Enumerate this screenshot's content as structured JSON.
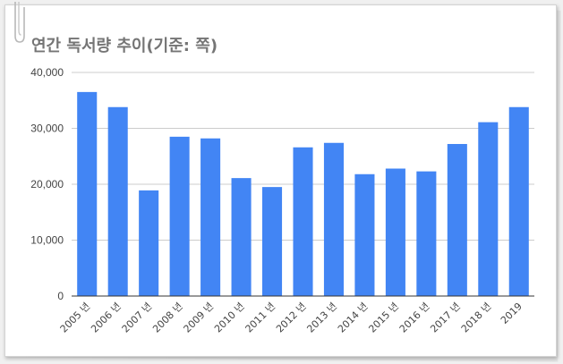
{
  "chart_data": {
    "type": "bar",
    "title": "연간 독서량 추이(기준: 쪽)",
    "xlabel": "",
    "ylabel": "",
    "categories": [
      "2005 년",
      "2006 년",
      "2007 년",
      "2008 년",
      "2009 년",
      "2010 년",
      "2011 년",
      "2012 년",
      "2013 년",
      "2014 년",
      "2015 년",
      "2016 년",
      "2017 년",
      "2018 년",
      "2019"
    ],
    "values": [
      36500,
      33800,
      18900,
      28500,
      28200,
      21100,
      19500,
      26600,
      27400,
      21800,
      22800,
      22300,
      27200,
      31100,
      33800
    ],
    "ylim": [
      0,
      40000
    ],
    "yticks": [
      0,
      10000,
      20000,
      30000,
      40000
    ],
    "ytick_labels": [
      "0",
      "10,000",
      "20,000",
      "30,000",
      "40,000"
    ],
    "grid": true,
    "legend": "none",
    "bar_color": "#4285f4"
  }
}
